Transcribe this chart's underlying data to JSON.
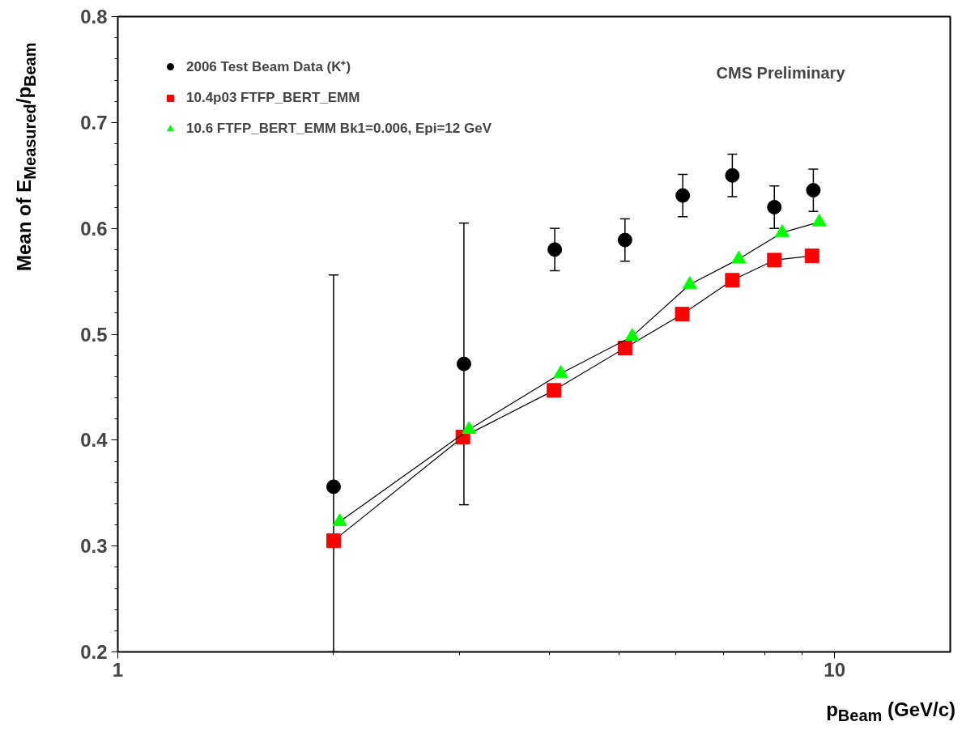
{
  "chart_data": {
    "type": "scatter",
    "ylabel": "Mean of E$_{Measured}$/p$_{Beam}$",
    "xlabel": "p$_{Beam}$ (GeV/c)",
    "annotations": [
      "CMS Preliminary"
    ],
    "log": "x",
    "xlim": [
      1,
      14.5
    ],
    "xticks": [
      1,
      10
    ],
    "ylim": [
      0.2,
      0.8
    ],
    "yticks": [
      0.2,
      0.3,
      0.4,
      0.5,
      0.6,
      0.7,
      0.8
    ],
    "grid": false,
    "legend": "top left",
    "series": [
      {
        "name": "2006 Test Beam Data (K⁺)",
        "marker": "circle",
        "color": "#000000",
        "x": [
          2,
          3.04,
          4.07,
          5.1,
          6.14,
          7.2,
          8.24,
          9.34
        ],
        "values": [
          0.356,
          0.472,
          0.58,
          0.589,
          0.631,
          0.65,
          0.62,
          0.636
        ],
        "errors": [
          [
            0.2,
            0.556
          ],
          0.133,
          0.02,
          0.02,
          0.02,
          0.02,
          0.02,
          0.02
        ]
      },
      {
        "name": "10.4p03 FTFP_BERT_EMM",
        "type": "line",
        "marker": "square",
        "color": "#ff0000",
        "x": [
          2,
          3.03,
          4.06,
          5.1,
          6.13,
          7.2,
          8.24,
          9.3
        ],
        "values": [
          0.305,
          0.403,
          0.447,
          0.487,
          0.519,
          0.551,
          0.57,
          0.574
        ]
      },
      {
        "name": "10.6 FTFP_BERT_EMM Bk1=0.006, Epi=12 GeV",
        "type": "line",
        "marker": "triangle",
        "color": "#00ff00",
        "x": [
          2.04,
          3.09,
          4.15,
          5.22,
          6.28,
          7.35,
          8.45,
          9.52
        ],
        "values": [
          0.323,
          0.41,
          0.463,
          0.498,
          0.547,
          0.571,
          0.596,
          0.606
        ]
      }
    ]
  }
}
